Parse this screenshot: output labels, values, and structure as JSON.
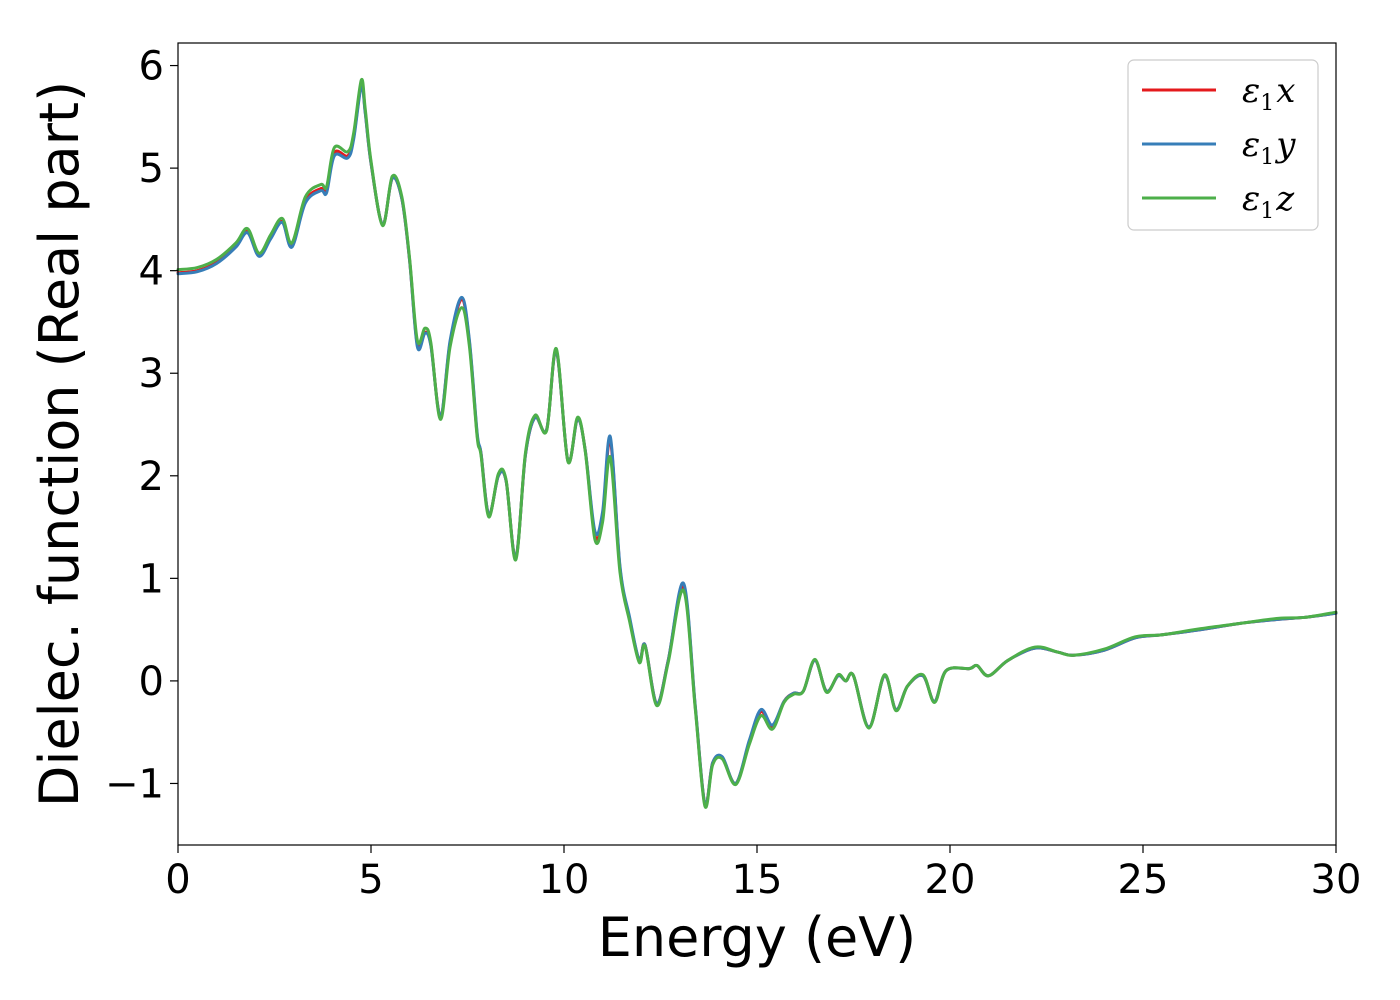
{
  "chart_data": {
    "type": "line",
    "xlabel": "Energy (eV)",
    "ylabel": "Dielec. function (Real part)",
    "xlim": [
      0,
      30
    ],
    "ylim": [
      -1.6,
      6.22
    ],
    "xticks": [
      0,
      5,
      10,
      15,
      20,
      25,
      30
    ],
    "yticks": [
      -1,
      0,
      1,
      2,
      3,
      4,
      5,
      6
    ],
    "xtick_labels": [
      "0",
      "5",
      "10",
      "15",
      "20",
      "25",
      "30"
    ],
    "ytick_labels": [
      "−1",
      "0",
      "1",
      "2",
      "3",
      "4",
      "5",
      "6"
    ],
    "grid": false,
    "legend_position": "top-right",
    "series": [
      {
        "name": "ε1x",
        "legend": {
          "base": "ε",
          "sub": "1",
          "var": "x"
        },
        "color": "#e41a1c",
        "points": [
          [
            0,
            3.98
          ],
          [
            0.5,
            4.0
          ],
          [
            1.0,
            4.08
          ],
          [
            1.5,
            4.24
          ],
          [
            1.8,
            4.38
          ],
          [
            2.1,
            4.15
          ],
          [
            2.4,
            4.32
          ],
          [
            2.7,
            4.48
          ],
          [
            2.95,
            4.24
          ],
          [
            3.3,
            4.68
          ],
          [
            3.7,
            4.8
          ],
          [
            3.85,
            4.78
          ],
          [
            4.05,
            5.15
          ],
          [
            4.4,
            5.12
          ],
          [
            4.55,
            5.3
          ],
          [
            4.75,
            5.82
          ],
          [
            4.85,
            5.55
          ],
          [
            5.0,
            5.05
          ],
          [
            5.3,
            4.45
          ],
          [
            5.55,
            4.9
          ],
          [
            5.8,
            4.7
          ],
          [
            6.0,
            4.1
          ],
          [
            6.2,
            3.28
          ],
          [
            6.4,
            3.4
          ],
          [
            6.55,
            3.28
          ],
          [
            6.8,
            2.58
          ],
          [
            7.05,
            3.3
          ],
          [
            7.35,
            3.72
          ],
          [
            7.55,
            3.3
          ],
          [
            7.75,
            2.4
          ],
          [
            7.85,
            2.22
          ],
          [
            8.05,
            1.62
          ],
          [
            8.3,
            2.0
          ],
          [
            8.5,
            1.95
          ],
          [
            8.75,
            1.2
          ],
          [
            9.0,
            2.2
          ],
          [
            9.25,
            2.57
          ],
          [
            9.55,
            2.45
          ],
          [
            9.8,
            3.22
          ],
          [
            10.1,
            2.15
          ],
          [
            10.35,
            2.55
          ],
          [
            10.55,
            2.25
          ],
          [
            10.8,
            1.42
          ],
          [
            11.0,
            1.6
          ],
          [
            11.2,
            2.35
          ],
          [
            11.45,
            1.1
          ],
          [
            11.7,
            0.6
          ],
          [
            11.95,
            0.2
          ],
          [
            12.1,
            0.35
          ],
          [
            12.4,
            -0.22
          ],
          [
            12.7,
            0.2
          ],
          [
            13.1,
            0.92
          ],
          [
            13.4,
            -0.25
          ],
          [
            13.65,
            -1.2
          ],
          [
            13.85,
            -0.8
          ],
          [
            14.1,
            -0.75
          ],
          [
            14.45,
            -1.0
          ],
          [
            14.8,
            -0.6
          ],
          [
            15.1,
            -0.3
          ],
          [
            15.4,
            -0.45
          ],
          [
            15.7,
            -0.2
          ],
          [
            15.95,
            -0.12
          ],
          [
            16.2,
            -0.1
          ],
          [
            16.5,
            0.2
          ],
          [
            16.8,
            -0.1
          ],
          [
            17.1,
            0.05
          ],
          [
            17.3,
            0.0
          ],
          [
            17.5,
            0.05
          ],
          [
            17.9,
            -0.45
          ],
          [
            18.3,
            0.05
          ],
          [
            18.6,
            -0.28
          ],
          [
            18.9,
            -0.05
          ],
          [
            19.3,
            0.05
          ],
          [
            19.6,
            -0.2
          ],
          [
            19.9,
            0.1
          ],
          [
            20.5,
            0.12
          ],
          [
            20.7,
            0.15
          ],
          [
            21.0,
            0.05
          ],
          [
            21.5,
            0.2
          ],
          [
            22.2,
            0.32
          ],
          [
            22.8,
            0.28
          ],
          [
            23.2,
            0.25
          ],
          [
            24.0,
            0.3
          ],
          [
            24.8,
            0.42
          ],
          [
            25.5,
            0.45
          ],
          [
            26.5,
            0.5
          ],
          [
            27.5,
            0.56
          ],
          [
            28.5,
            0.6
          ],
          [
            29.2,
            0.62
          ],
          [
            30,
            0.66
          ]
        ]
      },
      {
        "name": "ε1y",
        "legend": {
          "base": "ε",
          "sub": "1",
          "var": "y"
        },
        "color": "#377eb8",
        "points": [
          [
            0,
            3.97
          ],
          [
            0.5,
            3.99
          ],
          [
            1.0,
            4.07
          ],
          [
            1.5,
            4.23
          ],
          [
            1.8,
            4.37
          ],
          [
            2.1,
            4.14
          ],
          [
            2.4,
            4.31
          ],
          [
            2.7,
            4.47
          ],
          [
            2.95,
            4.23
          ],
          [
            3.3,
            4.66
          ],
          [
            3.7,
            4.78
          ],
          [
            3.85,
            4.76
          ],
          [
            4.05,
            5.12
          ],
          [
            4.4,
            5.1
          ],
          [
            4.55,
            5.28
          ],
          [
            4.75,
            5.8
          ],
          [
            4.85,
            5.54
          ],
          [
            5.0,
            5.05
          ],
          [
            5.3,
            4.45
          ],
          [
            5.55,
            4.9
          ],
          [
            5.8,
            4.7
          ],
          [
            6.0,
            4.1
          ],
          [
            6.2,
            3.26
          ],
          [
            6.4,
            3.39
          ],
          [
            6.55,
            3.27
          ],
          [
            6.8,
            2.58
          ],
          [
            7.05,
            3.32
          ],
          [
            7.35,
            3.74
          ],
          [
            7.55,
            3.32
          ],
          [
            7.75,
            2.42
          ],
          [
            7.85,
            2.22
          ],
          [
            8.05,
            1.62
          ],
          [
            8.3,
            2.0
          ],
          [
            8.5,
            1.95
          ],
          [
            8.75,
            1.2
          ],
          [
            9.0,
            2.2
          ],
          [
            9.25,
            2.57
          ],
          [
            9.55,
            2.45
          ],
          [
            9.8,
            3.22
          ],
          [
            10.1,
            2.15
          ],
          [
            10.35,
            2.55
          ],
          [
            10.55,
            2.25
          ],
          [
            10.8,
            1.46
          ],
          [
            11.0,
            1.65
          ],
          [
            11.2,
            2.38
          ],
          [
            11.45,
            1.12
          ],
          [
            11.7,
            0.62
          ],
          [
            11.95,
            0.2
          ],
          [
            12.1,
            0.35
          ],
          [
            12.4,
            -0.22
          ],
          [
            12.7,
            0.2
          ],
          [
            13.1,
            0.95
          ],
          [
            13.4,
            -0.24
          ],
          [
            13.65,
            -1.2
          ],
          [
            13.85,
            -0.8
          ],
          [
            14.1,
            -0.74
          ],
          [
            14.45,
            -1.0
          ],
          [
            14.8,
            -0.58
          ],
          [
            15.1,
            -0.28
          ],
          [
            15.4,
            -0.43
          ],
          [
            15.7,
            -0.2
          ],
          [
            15.95,
            -0.12
          ],
          [
            16.2,
            -0.1
          ],
          [
            16.5,
            0.2
          ],
          [
            16.8,
            -0.1
          ],
          [
            17.1,
            0.05
          ],
          [
            17.3,
            0.0
          ],
          [
            17.5,
            0.05
          ],
          [
            17.9,
            -0.45
          ],
          [
            18.3,
            0.05
          ],
          [
            18.6,
            -0.28
          ],
          [
            18.9,
            -0.05
          ],
          [
            19.3,
            0.05
          ],
          [
            19.6,
            -0.2
          ],
          [
            19.9,
            0.1
          ],
          [
            20.5,
            0.12
          ],
          [
            20.7,
            0.15
          ],
          [
            21.0,
            0.05
          ],
          [
            21.5,
            0.2
          ],
          [
            22.2,
            0.32
          ],
          [
            22.8,
            0.28
          ],
          [
            23.2,
            0.25
          ],
          [
            24.0,
            0.3
          ],
          [
            24.8,
            0.42
          ],
          [
            25.5,
            0.45
          ],
          [
            26.5,
            0.5
          ],
          [
            27.5,
            0.56
          ],
          [
            28.5,
            0.6
          ],
          [
            29.2,
            0.62
          ],
          [
            30,
            0.66
          ]
        ]
      },
      {
        "name": "ε1z",
        "legend": {
          "base": "ε",
          "sub": "1",
          "var": "z"
        },
        "color": "#4daf4a",
        "points": [
          [
            0,
            4.01
          ],
          [
            0.5,
            4.03
          ],
          [
            1.0,
            4.11
          ],
          [
            1.5,
            4.27
          ],
          [
            1.8,
            4.41
          ],
          [
            2.1,
            4.17
          ],
          [
            2.4,
            4.35
          ],
          [
            2.7,
            4.51
          ],
          [
            2.95,
            4.27
          ],
          [
            3.3,
            4.72
          ],
          [
            3.7,
            4.84
          ],
          [
            3.85,
            4.82
          ],
          [
            4.05,
            5.2
          ],
          [
            4.4,
            5.16
          ],
          [
            4.55,
            5.34
          ],
          [
            4.75,
            5.86
          ],
          [
            4.85,
            5.58
          ],
          [
            5.0,
            5.07
          ],
          [
            5.3,
            4.44
          ],
          [
            5.55,
            4.92
          ],
          [
            5.8,
            4.72
          ],
          [
            6.0,
            4.12
          ],
          [
            6.2,
            3.32
          ],
          [
            6.4,
            3.44
          ],
          [
            6.55,
            3.3
          ],
          [
            6.8,
            2.55
          ],
          [
            7.05,
            3.26
          ],
          [
            7.35,
            3.64
          ],
          [
            7.55,
            3.26
          ],
          [
            7.75,
            2.38
          ],
          [
            7.85,
            2.2
          ],
          [
            8.05,
            1.6
          ],
          [
            8.3,
            2.02
          ],
          [
            8.5,
            1.96
          ],
          [
            8.75,
            1.18
          ],
          [
            9.0,
            2.22
          ],
          [
            9.25,
            2.59
          ],
          [
            9.55,
            2.44
          ],
          [
            9.8,
            3.24
          ],
          [
            10.1,
            2.14
          ],
          [
            10.35,
            2.57
          ],
          [
            10.55,
            2.24
          ],
          [
            10.8,
            1.38
          ],
          [
            11.0,
            1.55
          ],
          [
            11.2,
            2.18
          ],
          [
            11.45,
            1.06
          ],
          [
            11.7,
            0.58
          ],
          [
            11.95,
            0.18
          ],
          [
            12.1,
            0.34
          ],
          [
            12.4,
            -0.24
          ],
          [
            12.7,
            0.18
          ],
          [
            13.1,
            0.88
          ],
          [
            13.4,
            -0.27
          ],
          [
            13.65,
            -1.22
          ],
          [
            13.85,
            -0.82
          ],
          [
            14.1,
            -0.76
          ],
          [
            14.45,
            -1.01
          ],
          [
            14.8,
            -0.62
          ],
          [
            15.1,
            -0.34
          ],
          [
            15.4,
            -0.47
          ],
          [
            15.7,
            -0.21
          ],
          [
            15.95,
            -0.13
          ],
          [
            16.2,
            -0.1
          ],
          [
            16.5,
            0.21
          ],
          [
            16.8,
            -0.11
          ],
          [
            17.1,
            0.06
          ],
          [
            17.3,
            0.0
          ],
          [
            17.5,
            0.05
          ],
          [
            17.9,
            -0.46
          ],
          [
            18.3,
            0.06
          ],
          [
            18.6,
            -0.29
          ],
          [
            18.9,
            -0.05
          ],
          [
            19.3,
            0.06
          ],
          [
            19.6,
            -0.21
          ],
          [
            19.9,
            0.1
          ],
          [
            20.5,
            0.12
          ],
          [
            20.7,
            0.15
          ],
          [
            21.0,
            0.05
          ],
          [
            21.5,
            0.2
          ],
          [
            22.2,
            0.33
          ],
          [
            22.8,
            0.28
          ],
          [
            23.2,
            0.25
          ],
          [
            24.0,
            0.31
          ],
          [
            24.8,
            0.43
          ],
          [
            25.5,
            0.45
          ],
          [
            26.5,
            0.51
          ],
          [
            27.5,
            0.56
          ],
          [
            28.5,
            0.61
          ],
          [
            29.2,
            0.62
          ],
          [
            30,
            0.67
          ]
        ]
      }
    ]
  }
}
